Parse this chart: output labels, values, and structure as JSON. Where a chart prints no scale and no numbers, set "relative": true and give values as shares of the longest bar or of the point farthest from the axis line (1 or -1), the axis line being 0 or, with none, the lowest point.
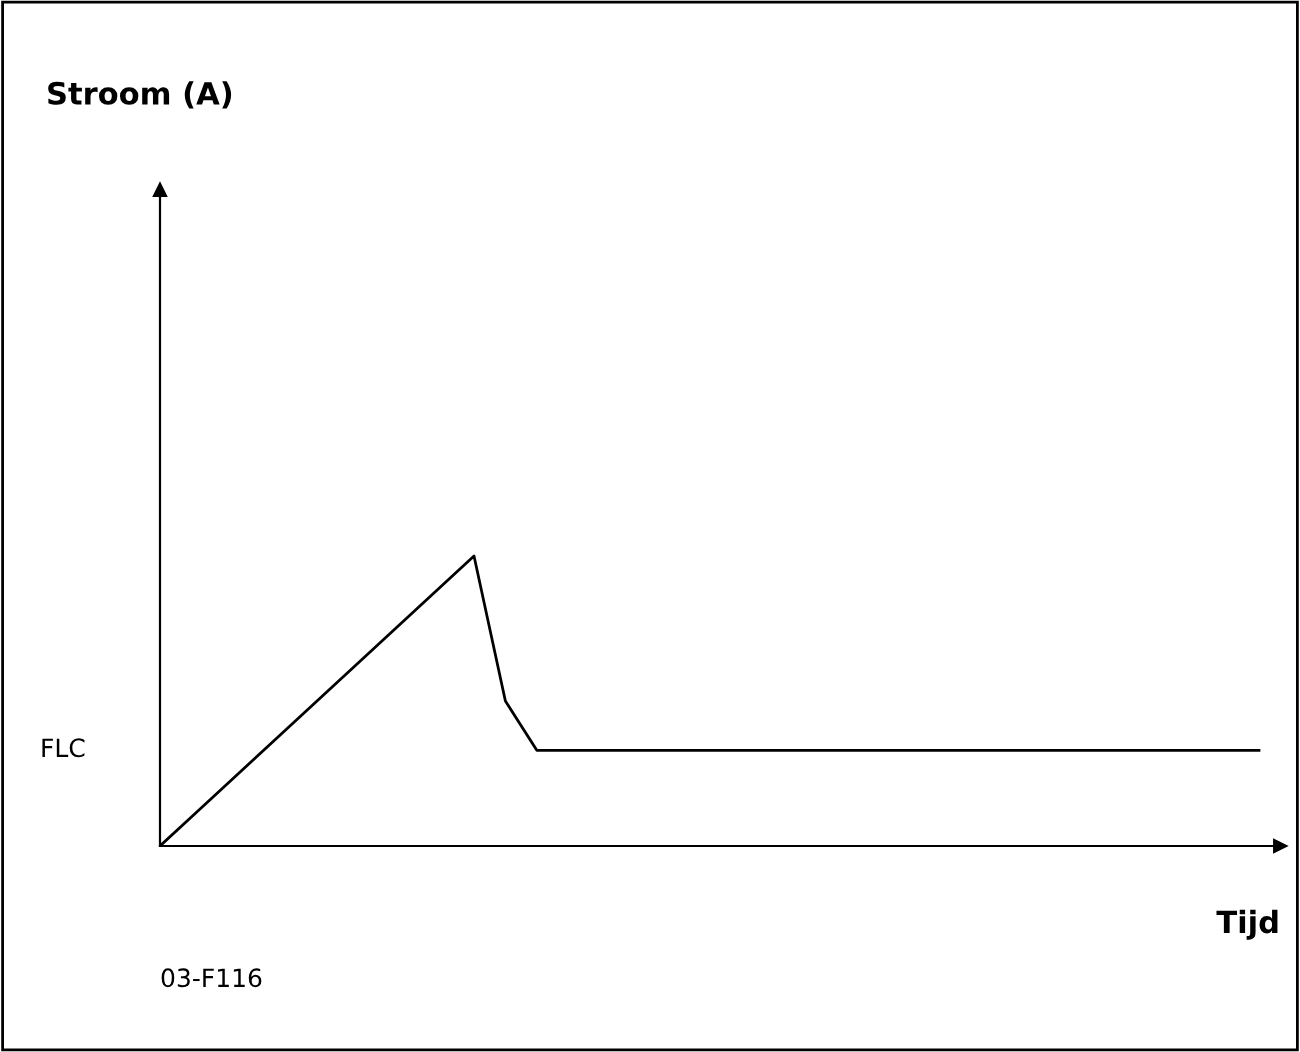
{
  "chart_data": {
    "type": "line",
    "relative": true,
    "title": "Stroom (A)",
    "xlabel": "Tijd",
    "categories": [
      null,
      null,
      null,
      null,
      null,
      null,
      null,
      null,
      null,
      null,
      null,
      null,
      null,
      null,
      null,
      null,
      null,
      null,
      null,
      null,
      null,
      null,
      null,
      null,
      null,
      null,
      null,
      null,
      null,
      null,
      null,
      null,
      null,
      null,
      null,
      null
    ],
    "series": [
      {
        "color": "#000000",
        "values": [
          0,
          0.1,
          0.2,
          0.3,
          0.4,
          0.5,
          0.6,
          0.7,
          0.8,
          0.9,
          1,
          0.5,
          0.33,
          0.33,
          0.33,
          0.33,
          0.33,
          0.33,
          0.33,
          0.33,
          0.33,
          0.33,
          0.33,
          0.33,
          0.33,
          0.33,
          0.33,
          0.33,
          0.33,
          0.33,
          0.33,
          0.33,
          0.33,
          0.33,
          0.33,
          0.33
        ]
      }
    ],
    "annotations": [
      "FLC",
      "03-F116"
    ],
    "grid": false,
    "legend": false,
    "marker": "none",
    "line_style": "solid"
  }
}
